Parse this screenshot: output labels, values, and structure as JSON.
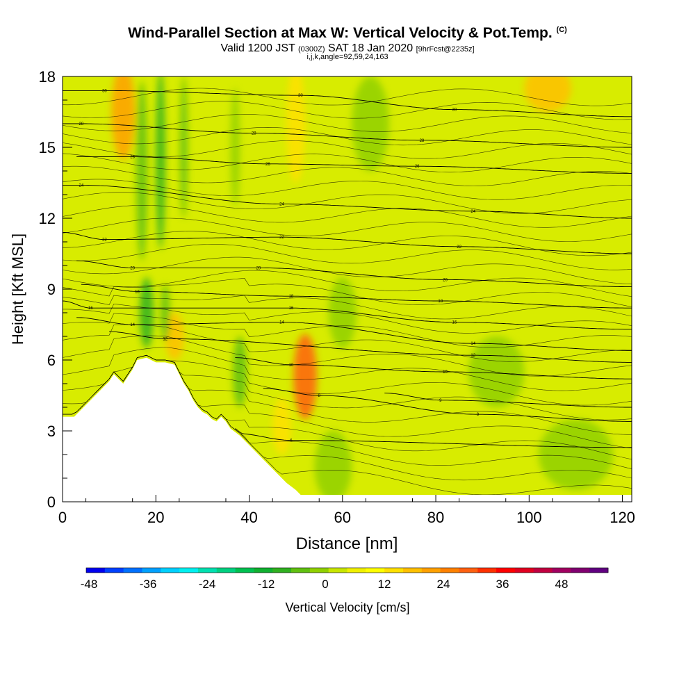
{
  "header": {
    "title": "Wind-Parallel Section at Max W: Vertical Velocity & Pot.Temp.",
    "title_unit": "(C)",
    "valid_prefix": "Valid 1200 JST",
    "valid_utc": "(0300Z)",
    "valid_date": "SAT 18 Jan 2020",
    "forecast": "[9hrFcst@2235z]",
    "indices": "i,j,k,angle=92,59,24,163"
  },
  "chart_data": {
    "type": "heatmap",
    "xlabel": "Distance [nm]",
    "ylabel": "Height [Kft MSL]",
    "xlim": [
      0,
      122
    ],
    "ylim": [
      0,
      18
    ],
    "xticks": [
      0,
      20,
      40,
      60,
      80,
      100,
      120
    ],
    "yticks": [
      0,
      3,
      6,
      9,
      12,
      15,
      18
    ],
    "colorbar": {
      "label": "Vertical Velocity [cm/s]",
      "ticks": [
        -48,
        -36,
        -24,
        -12,
        0,
        12,
        24,
        36,
        48
      ],
      "colors": [
        "#0000ee",
        "#0040ff",
        "#0070ff",
        "#00a0ff",
        "#00d0ff",
        "#00f0f0",
        "#00e0b0",
        "#00d080",
        "#00c050",
        "#10b030",
        "#30b020",
        "#60c010",
        "#90d000",
        "#c8e600",
        "#f0f000",
        "#ffff00",
        "#ffe000",
        "#ffc000",
        "#ffa000",
        "#ff8000",
        "#ff6010",
        "#ff3000",
        "#ff0000",
        "#e00020",
        "#c00040",
        "#a00060",
        "#800070",
        "#600080"
      ]
    },
    "terrain_profile": {
      "x": [
        0,
        2.5,
        3.5,
        5,
        6.5,
        8,
        9,
        10,
        11,
        12,
        13,
        14,
        15,
        16,
        18,
        20,
        22,
        24,
        25,
        26,
        27,
        28,
        29,
        30,
        31,
        32,
        33,
        34,
        35,
        36,
        38,
        40,
        42,
        44,
        46,
        48,
        50,
        51
      ],
      "height": [
        3.6,
        3.6,
        3.8,
        4.1,
        4.4,
        4.7,
        4.9,
        5.1,
        5.4,
        5.2,
        5.0,
        5.3,
        5.6,
        6.0,
        6.1,
        5.9,
        5.9,
        5.8,
        5.4,
        5.0,
        4.7,
        4.3,
        4.0,
        3.8,
        3.7,
        3.5,
        3.4,
        3.6,
        3.4,
        3.1,
        2.8,
        2.4,
        2.0,
        1.6,
        1.2,
        0.8,
        0.5,
        0.3
      ]
    },
    "theta_contours": [
      {
        "label": "6",
        "x_at_label": 49,
        "height_at_label": 2.6
      },
      {
        "label": "8",
        "x_at_label": 55,
        "height_at_label": 4.5
      },
      {
        "label": "8",
        "x_at_label": 89,
        "height_at_label": 3.7
      },
      {
        "label": "9",
        "x_at_label": 81,
        "height_at_label": 4.3
      },
      {
        "label": "10",
        "x_at_label": 49,
        "height_at_label": 5.8
      },
      {
        "label": "10",
        "x_at_label": 82,
        "height_at_label": 5.5
      },
      {
        "label": "12",
        "x_at_label": 22,
        "height_at_label": 6.9
      },
      {
        "label": "12",
        "x_at_label": 88,
        "height_at_label": 6.2
      },
      {
        "label": "14",
        "x_at_label": 15,
        "height_at_label": 7.5
      },
      {
        "label": "14",
        "x_at_label": 47,
        "height_at_label": 7.6
      },
      {
        "label": "14",
        "x_at_label": 88,
        "height_at_label": 6.7
      },
      {
        "label": "16",
        "x_at_label": 6,
        "height_at_label": 8.2
      },
      {
        "label": "16",
        "x_at_label": 49,
        "height_at_label": 8.2
      },
      {
        "label": "16",
        "x_at_label": 84,
        "height_at_label": 7.6
      },
      {
        "label": "18",
        "x_at_label": 16,
        "height_at_label": 8.9
      },
      {
        "label": "18",
        "x_at_label": 49,
        "height_at_label": 8.7
      },
      {
        "label": "18",
        "x_at_label": 81,
        "height_at_label": 8.5
      },
      {
        "label": "20",
        "x_at_label": 15,
        "height_at_label": 9.9
      },
      {
        "label": "20",
        "x_at_label": 42,
        "height_at_label": 9.9
      },
      {
        "label": "20",
        "x_at_label": 82,
        "height_at_label": 9.4
      },
      {
        "label": "22",
        "x_at_label": 9,
        "height_at_label": 11.1
      },
      {
        "label": "22",
        "x_at_label": 47,
        "height_at_label": 11.2
      },
      {
        "label": "22",
        "x_at_label": 85,
        "height_at_label": 10.8
      },
      {
        "label": "24",
        "x_at_label": 4,
        "height_at_label": 13.4
      },
      {
        "label": "24",
        "x_at_label": 47,
        "height_at_label": 12.6
      },
      {
        "label": "24",
        "x_at_label": 88,
        "height_at_label": 12.3
      },
      {
        "label": "26",
        "x_at_label": 15,
        "height_at_label": 14.6
      },
      {
        "label": "26",
        "x_at_label": 44,
        "height_at_label": 14.3
      },
      {
        "label": "26",
        "x_at_label": 76,
        "height_at_label": 14.2
      },
      {
        "label": "28",
        "x_at_label": 4,
        "height_at_label": 16.0
      },
      {
        "label": "28",
        "x_at_label": 41,
        "height_at_label": 15.6
      },
      {
        "label": "28",
        "x_at_label": 77,
        "height_at_label": 15.3
      },
      {
        "label": "30",
        "x_at_label": 9,
        "height_at_label": 17.4
      },
      {
        "label": "30",
        "x_at_label": 51,
        "height_at_label": 17.2
      },
      {
        "label": "30",
        "x_at_label": 84,
        "height_at_label": 16.6
      }
    ],
    "velocity_features": [
      {
        "kind": "updraft",
        "x_center": 13,
        "height_center": 16.5,
        "x_halfwidth": 2.5,
        "height_halfwidth": 2.0,
        "value": 14
      },
      {
        "kind": "updraft",
        "x_center": 52,
        "height_center": 5.3,
        "x_halfwidth": 2.5,
        "height_halfwidth": 1.8,
        "value": 22
      },
      {
        "kind": "updraft",
        "x_center": 50,
        "height_center": 16.0,
        "x_halfwidth": 2.0,
        "height_halfwidth": 2.5,
        "value": 10
      },
      {
        "kind": "updraft",
        "x_center": 104,
        "height_center": 17.5,
        "x_halfwidth": 5.0,
        "height_halfwidth": 1.0,
        "value": 12
      },
      {
        "kind": "updraft",
        "x_center": 24,
        "height_center": 7.0,
        "x_halfwidth": 2.0,
        "height_halfwidth": 1.0,
        "value": 12
      },
      {
        "kind": "updraft",
        "x_center": 47,
        "height_center": 3.2,
        "x_halfwidth": 2.0,
        "height_halfwidth": 1.2,
        "value": 10
      },
      {
        "kind": "downdraft",
        "x_center": 17,
        "height_center": 14.0,
        "x_halfwidth": 1.2,
        "height_halfwidth": 3.8,
        "value": -10
      },
      {
        "kind": "downdraft",
        "x_center": 21,
        "height_center": 14.5,
        "x_halfwidth": 1.0,
        "height_halfwidth": 3.8,
        "value": -12
      },
      {
        "kind": "downdraft",
        "x_center": 26,
        "height_center": 15.0,
        "x_halfwidth": 0.8,
        "height_halfwidth": 3.0,
        "value": -8
      },
      {
        "kind": "downdraft",
        "x_center": 18,
        "height_center": 8.0,
        "x_halfwidth": 1.5,
        "height_halfwidth": 1.5,
        "value": -12
      },
      {
        "kind": "downdraft",
        "x_center": 22,
        "height_center": 8.0,
        "x_halfwidth": 1.0,
        "height_halfwidth": 1.2,
        "value": -10
      },
      {
        "kind": "downdraft",
        "x_center": 38,
        "height_center": 5.5,
        "x_halfwidth": 1.5,
        "height_halfwidth": 1.5,
        "value": -10
      },
      {
        "kind": "downdraft",
        "x_center": 37,
        "height_center": 15.0,
        "x_halfwidth": 1.0,
        "height_halfwidth": 2.5,
        "value": -6
      },
      {
        "kind": "downdraft",
        "x_center": 66,
        "height_center": 16.0,
        "x_halfwidth": 4.0,
        "height_halfwidth": 2.0,
        "value": -5
      },
      {
        "kind": "downdraft",
        "x_center": 93,
        "height_center": 5.5,
        "x_halfwidth": 6.0,
        "height_halfwidth": 1.5,
        "value": -6
      },
      {
        "kind": "downdraft",
        "x_center": 110,
        "height_center": 2.0,
        "x_halfwidth": 8.0,
        "height_halfwidth": 1.5,
        "value": -5
      },
      {
        "kind": "downdraft",
        "x_center": 60,
        "height_center": 8.0,
        "x_halfwidth": 3.0,
        "height_halfwidth": 1.5,
        "value": -6
      },
      {
        "kind": "downdraft",
        "x_center": 58,
        "height_center": 1.5,
        "x_halfwidth": 4.0,
        "height_halfwidth": 1.5,
        "value": -6
      }
    ]
  }
}
